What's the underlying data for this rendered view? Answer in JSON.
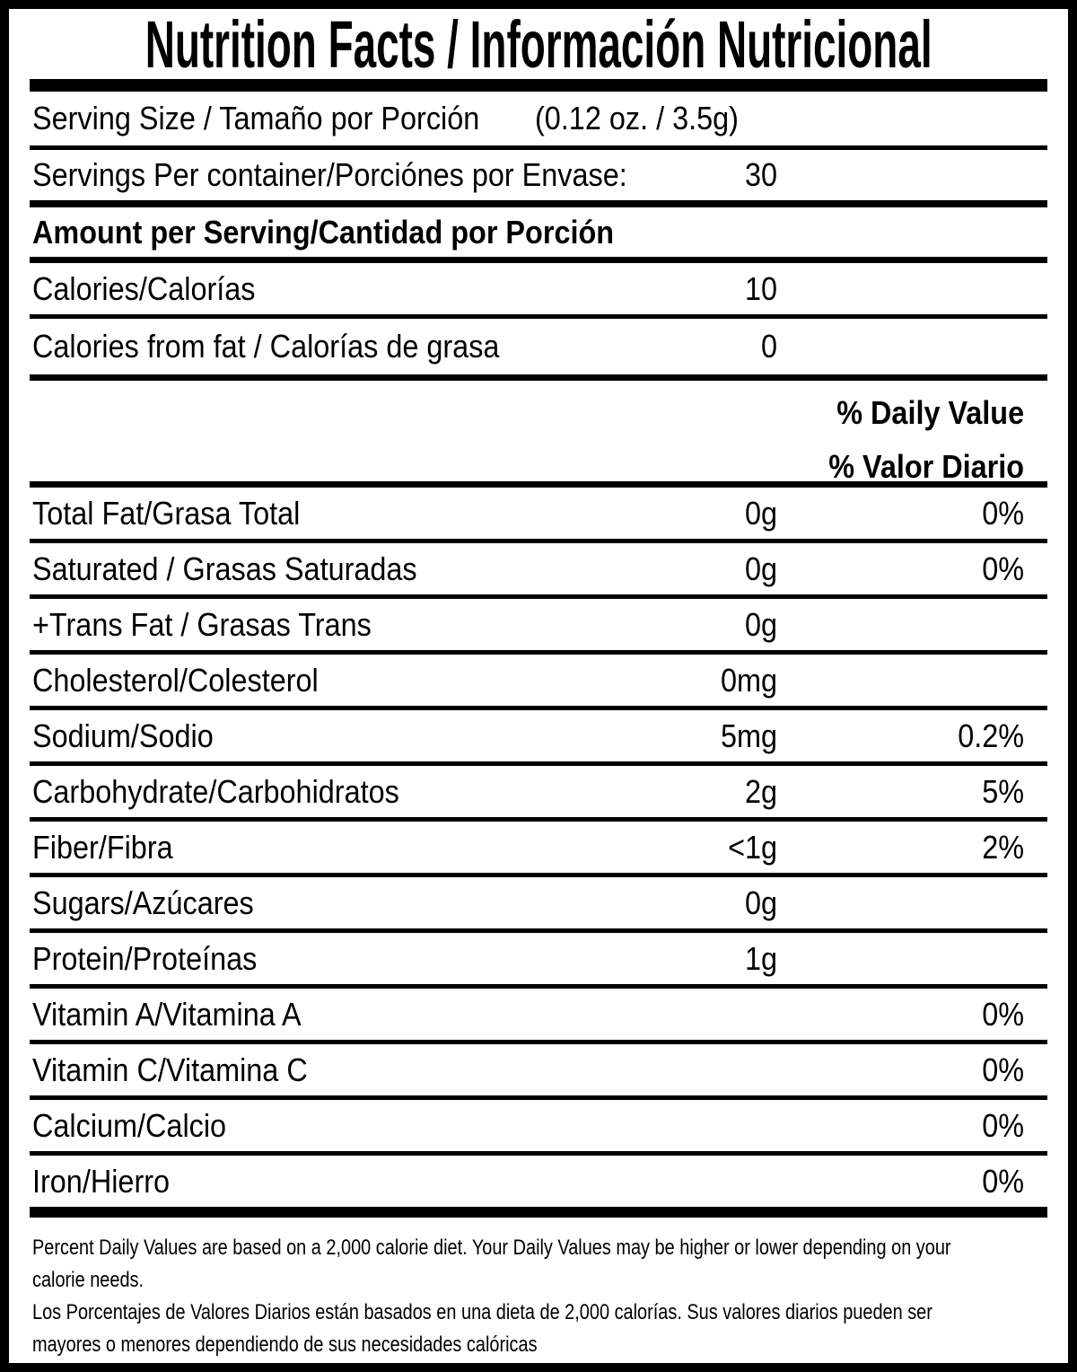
{
  "label": {
    "title": "Nutrition Facts / Información Nutricional",
    "serving_size": {
      "label": "Serving Size / Tamaño por Porción",
      "value": "(0.12 oz. / 3.5g)"
    },
    "servings_per_container": {
      "label": "Servings Per container/Porciónes por Envase:",
      "value": "30"
    },
    "amount_heading": "Amount per Serving/Cantidad por Porción",
    "calories": {
      "label": "Calories/Calorías",
      "value": "10"
    },
    "calories_from_fat": {
      "label": "Calories from fat / Calorías de grasa",
      "value": "0"
    },
    "daily_value_header": {
      "line1": "% Daily Value",
      "line2": "% Valor Diario"
    },
    "nutrients": [
      {
        "label": "Total Fat/Grasa Total",
        "amount": "0g",
        "dv": "0%"
      },
      {
        "label": "Saturated / Grasas Saturadas",
        "amount": "0g",
        "dv": "0%"
      },
      {
        "label": "+Trans Fat / Grasas Trans",
        "amount": "0g",
        "dv": ""
      },
      {
        "label": "Cholesterol/Colesterol",
        "amount": "0mg",
        "dv": ""
      },
      {
        "label": "Sodium/Sodio",
        "amount": "5mg",
        "dv": "0.2%"
      },
      {
        "label": "Carbohydrate/Carbohidratos",
        "amount": "2g",
        "dv": "5%"
      },
      {
        "label": "Fiber/Fibra",
        "amount": "<1g",
        "dv": "2%"
      },
      {
        "label": "Sugars/Azúcares",
        "amount": "0g",
        "dv": ""
      },
      {
        "label": "Protein/Proteínas",
        "amount": "1g",
        "dv": ""
      },
      {
        "label": "Vitamin A/Vitamina A",
        "amount": "",
        "dv": "0%"
      },
      {
        "label": "Vitamin C/Vitamina C",
        "amount": "",
        "dv": "0%"
      },
      {
        "label": "Calcium/Calcio",
        "amount": "",
        "dv": "0%"
      },
      {
        "label": "Iron/Hierro",
        "amount": "",
        "dv": "0%"
      }
    ],
    "footnote": {
      "en_lines": [
        "Percent Daily Values are based on a 2,000 calorie diet. Your Daily Values may be higher or lower depending on your",
        "calorie needs."
      ],
      "es_lines": [
        "Los Porcentajes de Valores Diarios están basados en una dieta de 2,000 calorías. Sus valores diarios pueden ser",
        "mayores o menores dependiendo de sus necesidades calóricas"
      ]
    },
    "colors": {
      "text": "#000000",
      "background": "#ffffff"
    }
  }
}
